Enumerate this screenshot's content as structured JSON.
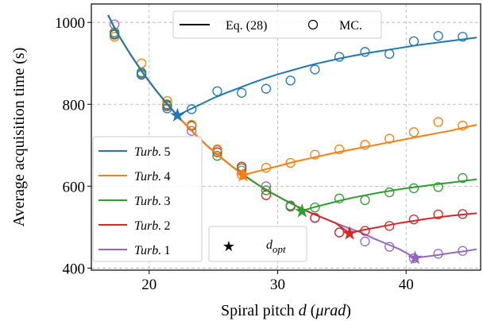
{
  "chart_data": {
    "type": "line",
    "title": "",
    "xlabel": "Spiral pitch d (μrad)",
    "xlabel_parts": {
      "prefix": "Spiral pitch ",
      "var": "d",
      "unit_open": " (",
      "unit": "μrad",
      "unit_close": ")"
    },
    "ylabel": "Average acquisition time (s)",
    "xlim": [
      15.5,
      45.8
    ],
    "ylim": [
      395,
      1045
    ],
    "xticks": [
      20,
      30,
      40
    ],
    "yticks": [
      400,
      600,
      800,
      1000
    ],
    "grid": true,
    "legends": {
      "top": {
        "placement": "top-center",
        "items": [
          {
            "label": "Eq. (28)",
            "marker": "line"
          },
          {
            "label": "MC.",
            "marker": "circle"
          }
        ]
      },
      "series": {
        "placement": "lower-left",
        "entries": [
          {
            "series": 4,
            "label": "Turb.",
            "num": "5"
          },
          {
            "series": 3,
            "label": "Turb.",
            "num": "4"
          },
          {
            "series": 2,
            "label": "Turb.",
            "num": "3"
          },
          {
            "series": 1,
            "label": "Turb.",
            "num": "2"
          },
          {
            "series": 0,
            "label": "Turb.",
            "num": "1"
          }
        ]
      },
      "opt": {
        "placement": "lower-center",
        "label": "d",
        "sub": "opt"
      }
    },
    "series": [
      {
        "name": "Turb. 1",
        "color": "#9467bd",
        "line_x": [
          16.8,
          17.5,
          18.5,
          19.5,
          20.5,
          21.5,
          22.5,
          23.5,
          24.5,
          25.5,
          26.5,
          27.5,
          28.5,
          29.5,
          30.5,
          31.5,
          32.5,
          33.5,
          34.5,
          35.5,
          36.5,
          37.5,
          38.5,
          39.5,
          40.7,
          41.5,
          42.5,
          43.5,
          44.5,
          45.5
        ],
        "line_y": [
          1018,
          975,
          924,
          877,
          835,
          797,
          762,
          729,
          699,
          672,
          647,
          624,
          603,
          584,
          567,
          551,
          536,
          523,
          510,
          498,
          487,
          472,
          459,
          446,
          425,
          428,
          432,
          437,
          441,
          446
        ],
        "mc_x": [
          17.3,
          19.4,
          21.4,
          23.3,
          25.3,
          27.2,
          29.1,
          31.0,
          32.9,
          34.8,
          36.8,
          38.7,
          40.6,
          42.5,
          44.4
        ],
        "mc_y": [
          995,
          875,
          795,
          735,
          688,
          638,
          600,
          553,
          522,
          487,
          465,
          452,
          424,
          435,
          442
        ],
        "opt": {
          "x": 40.7,
          "y": 425
        }
      },
      {
        "name": "Turb. 2",
        "color": "#d62728",
        "line_x": [
          16.8,
          17.5,
          18.5,
          19.5,
          20.5,
          21.5,
          22.5,
          23.5,
          24.5,
          25.5,
          26.5,
          27.5,
          28.5,
          29.5,
          30.5,
          31.5,
          32.5,
          33.5,
          34.5,
          35.6,
          36.5,
          37.5,
          38.5,
          39.5,
          40.5,
          41.5,
          42.5,
          43.5,
          44.5,
          45.5
        ],
        "line_y": [
          1018,
          975,
          924,
          877,
          835,
          797,
          762,
          729,
          699,
          672,
          647,
          624,
          603,
          584,
          567,
          551,
          536,
          523,
          510,
          485,
          492,
          498,
          504,
          510,
          515,
          520,
          524,
          528,
          531,
          534
        ],
        "mc_x": [
          17.3,
          19.4,
          21.4,
          23.3,
          25.3,
          27.2,
          29.1,
          31.0,
          32.9,
          34.8,
          36.8,
          38.7,
          40.6,
          42.5,
          44.4
        ],
        "mc_y": [
          972,
          878,
          798,
          747,
          683,
          648,
          578,
          551,
          523,
          487,
          491,
          503,
          519,
          531,
          532
        ],
        "opt": {
          "x": 35.6,
          "y": 485
        }
      },
      {
        "name": "Turb. 3",
        "color": "#2ca02c",
        "line_x": [
          16.8,
          17.5,
          18.5,
          19.5,
          20.5,
          21.5,
          22.5,
          23.5,
          24.5,
          25.5,
          26.5,
          27.5,
          28.5,
          29.5,
          30.5,
          31.5,
          31.9,
          33.0,
          34.0,
          35.0,
          36.0,
          37.0,
          38.0,
          39.0,
          40.0,
          41.0,
          42.0,
          43.0,
          44.0,
          45.5
        ],
        "line_y": [
          1018,
          975,
          924,
          877,
          835,
          797,
          762,
          729,
          699,
          672,
          647,
          624,
          603,
          584,
          567,
          551,
          540,
          550,
          558,
          566,
          573,
          579,
          585,
          590,
          595,
          599,
          603,
          607,
          611,
          617
        ],
        "mc_x": [
          17.3,
          19.4,
          21.4,
          23.3,
          25.3,
          27.2,
          29.1,
          31.0,
          32.9,
          34.8,
          36.8,
          38.7,
          40.6,
          42.5,
          44.4
        ],
        "mc_y": [
          976,
          877,
          800,
          748,
          674,
          644,
          590,
          550,
          548,
          570,
          566,
          585,
          595,
          598,
          620
        ],
        "opt": {
          "x": 31.9,
          "y": 540
        }
      },
      {
        "name": "Turb. 4",
        "color": "#ff7f0e",
        "line_x": [
          16.8,
          17.5,
          18.5,
          19.5,
          20.5,
          21.5,
          22.5,
          23.5,
          24.5,
          25.5,
          26.5,
          27.3,
          28.5,
          29.5,
          30.5,
          31.5,
          32.5,
          33.5,
          34.5,
          35.5,
          36.5,
          37.5,
          38.5,
          39.5,
          40.5,
          41.5,
          42.5,
          43.5,
          44.5,
          45.5
        ],
        "line_y": [
          1018,
          975,
          924,
          877,
          835,
          797,
          762,
          729,
          699,
          672,
          647,
          627,
          637,
          645,
          653,
          661,
          668,
          675,
          682,
          688,
          694,
          700,
          706,
          712,
          718,
          724,
          730,
          736,
          743,
          750
        ],
        "mc_x": [
          17.3,
          19.4,
          21.4,
          23.3,
          25.3,
          27.2,
          29.1,
          31.0,
          32.9,
          34.8,
          36.8,
          38.7,
          40.6,
          42.5,
          44.4
        ],
        "mc_y": [
          965,
          900,
          808,
          750,
          690,
          628,
          645,
          657,
          677,
          690,
          701,
          716,
          732,
          757,
          748
        ],
        "opt": {
          "x": 27.3,
          "y": 627
        }
      },
      {
        "name": "Turb. 5",
        "color": "#1f77b4",
        "line_x": [
          16.8,
          17.5,
          18.5,
          19.5,
          20.5,
          21.5,
          22.2,
          23.0,
          24.0,
          25.0,
          26.0,
          27.0,
          28.0,
          29.0,
          30.0,
          31.0,
          32.0,
          33.0,
          34.0,
          35.0,
          36.0,
          37.0,
          38.0,
          39.0,
          40.0,
          41.0,
          42.0,
          43.0,
          44.0,
          45.5
        ],
        "line_y": [
          1018,
          975,
          924,
          877,
          835,
          797,
          773,
          785,
          800,
          815,
          828,
          840,
          852,
          863,
          873,
          882,
          891,
          899,
          906,
          913,
          919,
          925,
          930,
          935,
          940,
          945,
          949,
          953,
          957,
          963
        ],
        "mc_x": [
          17.3,
          19.4,
          21.4,
          23.3,
          25.3,
          27.2,
          29.1,
          31.0,
          32.9,
          34.8,
          36.8,
          38.7,
          40.6,
          42.5,
          44.4
        ],
        "mc_y": [
          970,
          872,
          790,
          788,
          832,
          828,
          838,
          858,
          885,
          916,
          928,
          923,
          954,
          967,
          965
        ],
        "opt": {
          "x": 22.2,
          "y": 773
        }
      }
    ]
  }
}
